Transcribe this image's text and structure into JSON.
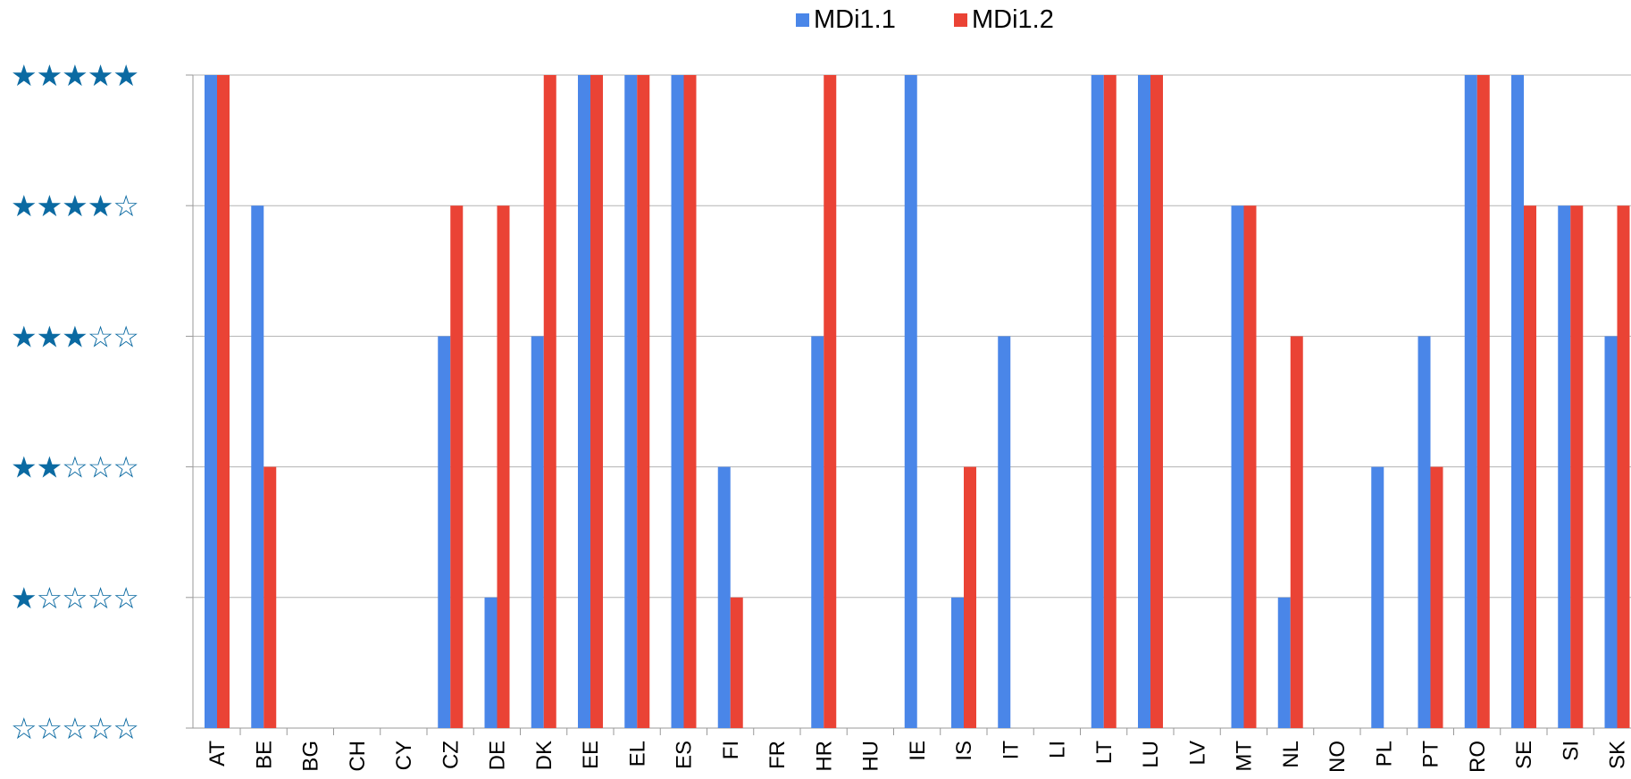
{
  "chart_data": {
    "type": "bar",
    "legend_position": "top",
    "grid": true,
    "ylim": [
      0,
      5
    ],
    "y_tick_labels": [
      "☆☆☆☆☆",
      "★☆☆☆☆",
      "★★☆☆☆",
      "★★★☆☆",
      "★★★★☆",
      "★★★★★"
    ],
    "categories": [
      "AT",
      "BE",
      "BG",
      "CH",
      "CY",
      "CZ",
      "DE",
      "DK",
      "EE",
      "EL",
      "ES",
      "FI",
      "FR",
      "HR",
      "HU",
      "IE",
      "IS",
      "IT",
      "LI",
      "LT",
      "LU",
      "LV",
      "MT",
      "NL",
      "NO",
      "PL",
      "PT",
      "RO",
      "SE",
      "SI",
      "SK"
    ],
    "series": [
      {
        "name": "MDi1.1",
        "color": "#4a86e8",
        "values": [
          5,
          4,
          0,
          0,
          0,
          3,
          1,
          3,
          5,
          5,
          5,
          2,
          0,
          3,
          0,
          5,
          1,
          3,
          0,
          5,
          5,
          0,
          4,
          1,
          0,
          2,
          3,
          5,
          5,
          4,
          3
        ]
      },
      {
        "name": "MDi1.2",
        "color": "#ea4335",
        "values": [
          5,
          2,
          0,
          0,
          0,
          4,
          4,
          5,
          5,
          5,
          5,
          1,
          0,
          5,
          0,
          0,
          2,
          0,
          0,
          5,
          5,
          0,
          4,
          3,
          0,
          0,
          2,
          5,
          4,
          4,
          4
        ]
      }
    ],
    "colors": {
      "grid": "#b3b3b3",
      "axis": "#999999",
      "star": "#0b6aa2"
    }
  }
}
